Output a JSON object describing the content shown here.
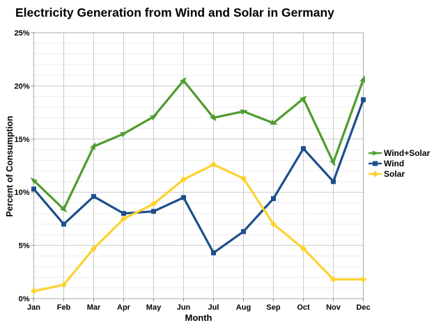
{
  "chart_data": {
    "type": "line",
    "title": "Electricity Generation from Wind and Solar in Germany",
    "xlabel": "Month",
    "ylabel": "Percent of Consumption",
    "categories": [
      "Jan",
      "Feb",
      "Mar",
      "Apr",
      "May",
      "Jun",
      "Jul",
      "Aug",
      "Sep",
      "Oct",
      "Nov",
      "Dec"
    ],
    "series": [
      {
        "name": "Wind+Solar",
        "color": "#4e9b2e",
        "marker": "arrow",
        "values": [
          11.1,
          8.4,
          14.3,
          15.5,
          17.1,
          20.5,
          17.0,
          17.6,
          16.5,
          18.8,
          12.8,
          20.6
        ]
      },
      {
        "name": "Wind",
        "color": "#1c4f8a",
        "marker": "square",
        "values": [
          10.3,
          7.0,
          9.6,
          8.0,
          8.2,
          9.5,
          4.3,
          6.3,
          9.4,
          14.1,
          11.0,
          18.7
        ]
      },
      {
        "name": "Solar",
        "color": "#fdd22e",
        "marker": "diamond",
        "values": [
          0.7,
          1.3,
          4.7,
          7.5,
          8.9,
          11.2,
          12.6,
          11.3,
          7.0,
          4.7,
          1.8,
          1.8
        ]
      }
    ],
    "ylim": [
      0,
      25
    ],
    "y_major_step": 5,
    "y_minor_step": 1,
    "y_tick_labels": [
      "0%",
      "5%",
      "10%",
      "15%",
      "20%",
      "25%"
    ],
    "grid": true,
    "legend_position": "right"
  },
  "colors": {
    "grid_minor": "#ededed",
    "grid_major": "#c9c9c9",
    "grid_vertical": "#c9c9c9",
    "plot_border": "#aaaaaa",
    "tick": "#888888",
    "text": "#000000",
    "background": "#ffffff"
  }
}
